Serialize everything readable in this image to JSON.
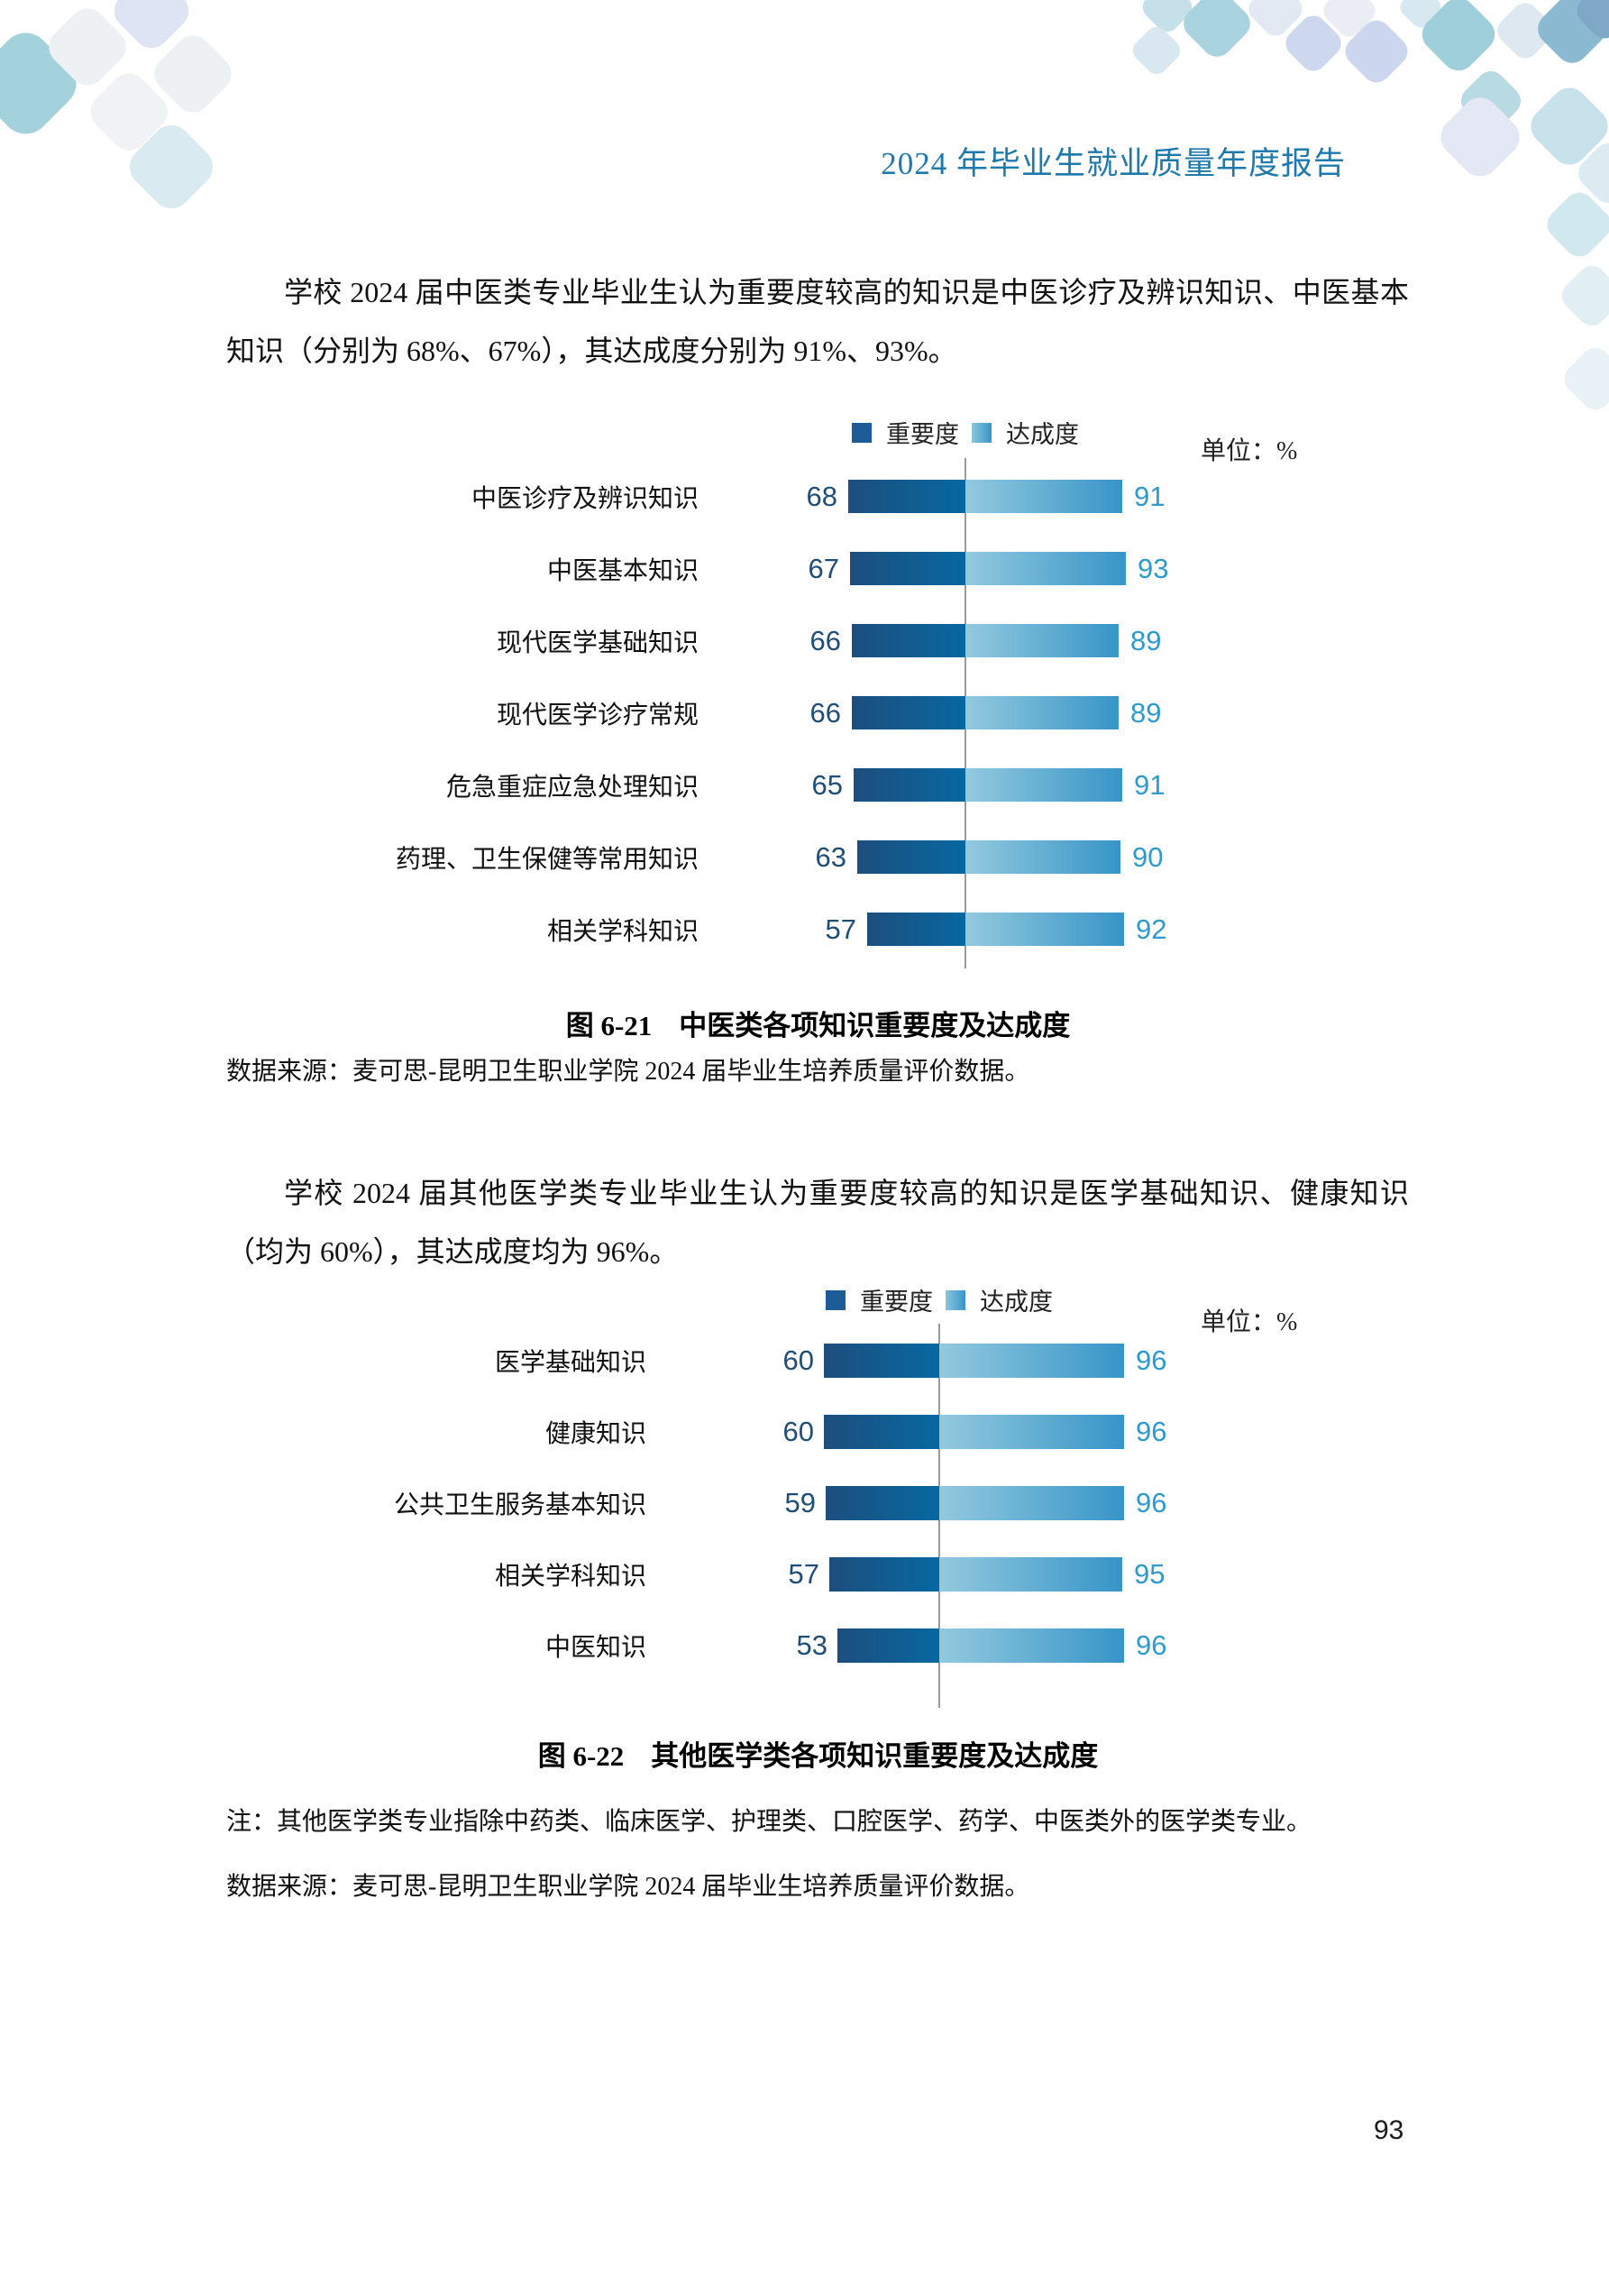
{
  "page": {
    "header_title": "2024 年毕业生就业质量年度报告",
    "page_number": "93"
  },
  "paragraphs": {
    "p1_line1": "学校 2024 届中医类专业毕业生认为重要度较高的知识是中医诊疗及辨识知识、中医基本",
    "p1_line2": "知识（分别为 68%、67%），其达成度分别为 91%、93%。",
    "p2_line1": "学校 2024 届其他医学类专业毕业生认为重要度较高的知识是医学基础知识、健康知识",
    "p2_line2": "（均为 60%），其达成度均为 96%。"
  },
  "chart_data": [
    {
      "type": "bar",
      "orientation": "horizontal-diverging",
      "caption_prefix": "图 6-21",
      "caption_title": "中医类各项知识重要度及达成度",
      "unit_label": "单位：%",
      "legend": [
        "重要度",
        "达成度"
      ],
      "categories": [
        "中医诊疗及辨识知识",
        "中医基本知识",
        "现代医学基础知识",
        "现代医学诊疗常规",
        "危急重症应急处理知识",
        "药理、卫生保健等常用知识",
        "相关学科知识"
      ],
      "series": [
        {
          "name": "重要度",
          "values": [
            68,
            67,
            66,
            66,
            65,
            63,
            57
          ]
        },
        {
          "name": "达成度",
          "values": [
            91,
            93,
            89,
            89,
            91,
            90,
            92
          ]
        }
      ],
      "xlim": [
        0,
        100
      ],
      "source": "数据来源：麦可思-昆明卫生职业学院 2024 届毕业生培养质量评价数据。"
    },
    {
      "type": "bar",
      "orientation": "horizontal-diverging",
      "caption_prefix": "图 6-22",
      "caption_title": "其他医学类各项知识重要度及达成度",
      "unit_label": "单位：%",
      "legend": [
        "重要度",
        "达成度"
      ],
      "categories": [
        "医学基础知识",
        "健康知识",
        "公共卫生服务基本知识",
        "相关学科知识",
        "中医知识"
      ],
      "series": [
        {
          "name": "重要度",
          "values": [
            60,
            60,
            59,
            57,
            53
          ]
        },
        {
          "name": "达成度",
          "values": [
            96,
            96,
            96,
            95,
            96
          ]
        }
      ],
      "xlim": [
        0,
        100
      ],
      "note": "注：其他医学类专业指除中药类、临床医学、护理类、口腔医学、药学、中医类外的医学类专业。",
      "source": "数据来源：麦可思-昆明卫生职业学院 2024 届毕业生培养质量评价数据。"
    }
  ],
  "colors": {
    "header_text": "#1e7aad",
    "importance_bar_start": "#1d4e7d",
    "importance_bar_end": "#0768a1",
    "achievement_bar_start": "#93c9de",
    "achievement_bar_end": "#3795c8",
    "importance_value_text": "#1f4e79",
    "achievement_value_text": "#2e9ace",
    "axis_line": "#9a9a9a"
  }
}
